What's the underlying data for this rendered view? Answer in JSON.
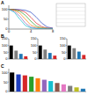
{
  "chart_data": [
    {
      "type": "line",
      "title": "A",
      "x": [
        0,
        1,
        2,
        3,
        4,
        5,
        6,
        7,
        8
      ],
      "xlim": [
        0,
        8
      ],
      "xticks": [
        0,
        4,
        8
      ],
      "ylim": [
        0,
        120
      ],
      "yticks": [
        0,
        50,
        100
      ],
      "grid": false,
      "series": [
        {
          "color": "#1f3fbf",
          "values": [
            100,
            100,
            98,
            95,
            85,
            60,
            30,
            10,
            5
          ]
        },
        {
          "color": "#d62728",
          "values": [
            100,
            98,
            95,
            85,
            60,
            30,
            12,
            5,
            3
          ]
        },
        {
          "color": "#2ca02c",
          "values": [
            100,
            97,
            90,
            70,
            40,
            15,
            6,
            3,
            2
          ]
        },
        {
          "color": "#ff7f0e",
          "values": [
            100,
            95,
            80,
            50,
            20,
            8,
            4,
            2,
            2
          ]
        },
        {
          "color": "#9467bd",
          "values": [
            100,
            90,
            65,
            30,
            10,
            4,
            2,
            1,
            1
          ]
        },
        {
          "color": "#17becf",
          "values": [
            100,
            85,
            50,
            18,
            6,
            3,
            1,
            1,
            1
          ]
        }
      ]
    },
    {
      "type": "bar",
      "title": "B",
      "categories": [
        null,
        null,
        null,
        null
      ],
      "values": [
        100,
        62,
        38,
        20
      ],
      "colors": [
        "#000000",
        "#7f7f7f",
        "#1f77b4",
        "#d62728"
      ],
      "ylim": [
        0,
        150
      ],
      "yticks": [
        0,
        50,
        100,
        150
      ],
      "grid": false
    },
    {
      "type": "bar",
      "categories": [
        null,
        null,
        null,
        null
      ],
      "values": [
        100,
        70,
        45,
        25
      ],
      "colors": [
        "#000000",
        "#7f7f7f",
        "#1f77b4",
        "#d62728"
      ],
      "ylim": [
        0,
        150
      ],
      "yticks": [
        0,
        50,
        100,
        150
      ],
      "grid": false
    },
    {
      "type": "bar",
      "categories": [
        null,
        null,
        null,
        null
      ],
      "values": [
        100,
        80,
        55,
        30
      ],
      "colors": [
        "#000000",
        "#7f7f7f",
        "#1f77b4",
        "#d62728"
      ],
      "ylim": [
        0,
        150
      ],
      "yticks": [
        0,
        50,
        100,
        150
      ],
      "grid": false
    },
    {
      "type": "bar",
      "title": "C",
      "categories": [
        null,
        null,
        null,
        null,
        null,
        null,
        null,
        null,
        null,
        null,
        null,
        null
      ],
      "values": [
        100,
        90,
        85,
        78,
        70,
        62,
        55,
        45,
        38,
        30,
        22,
        15
      ],
      "colors": [
        "#000000",
        "#1f3fbf",
        "#d62728",
        "#2ca02c",
        "#ff7f0e",
        "#9467bd",
        "#17becf",
        "#8c564b",
        "#e377c2",
        "#7f7f7f",
        "#bcbd22",
        "#1f77b4"
      ],
      "ylim": [
        0,
        120
      ],
      "yticks": [
        0,
        50,
        100
      ],
      "grid": false
    }
  ]
}
